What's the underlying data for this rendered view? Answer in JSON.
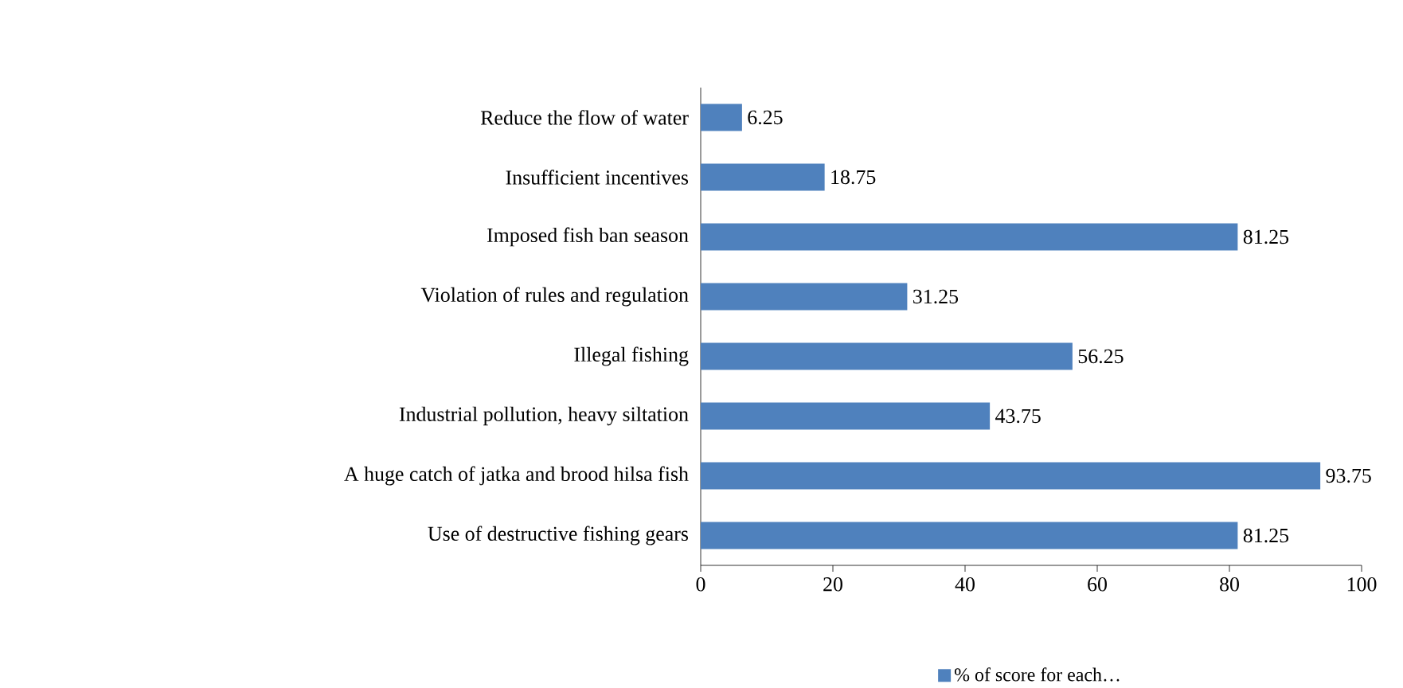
{
  "chart_data": {
    "type": "bar",
    "orientation": "horizontal",
    "categories": [
      "Reduce the flow of water",
      "Insufficient incentives",
      "Imposed fish ban season",
      "Violation of rules and regulation",
      "Illegal fishing",
      "Industrial pollution, heavy siltation",
      "A huge catch of  jatka and brood hilsa fish",
      "Use of destructive fishing gears"
    ],
    "series": [
      {
        "name": "% of score for each…",
        "color": "#4f81bd",
        "values": [
          6.25,
          18.75,
          81.25,
          31.25,
          56.25,
          43.75,
          93.75,
          81.25
        ]
      }
    ],
    "xlim": [
      0,
      100
    ],
    "xticks": [
      0,
      20,
      40,
      60,
      80,
      100
    ],
    "data_labels": true,
    "legend": "bottom"
  }
}
